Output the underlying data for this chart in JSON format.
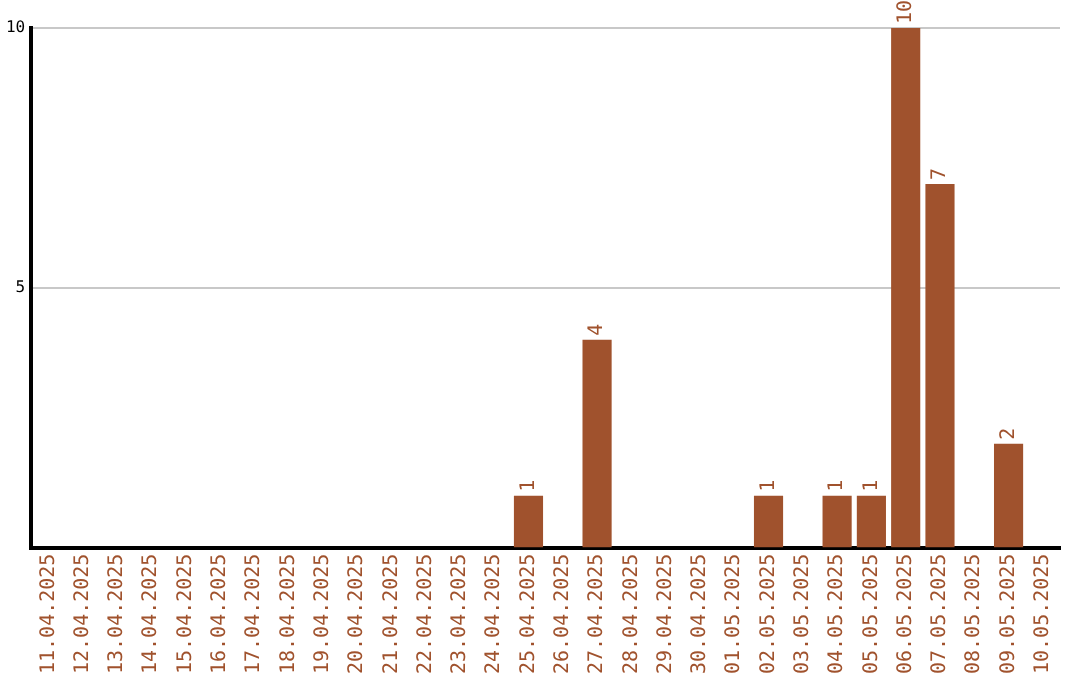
{
  "chart_data": {
    "type": "bar",
    "categories": [
      "11.04.2025",
      "12.04.2025",
      "13.04.2025",
      "14.04.2025",
      "15.04.2025",
      "16.04.2025",
      "17.04.2025",
      "18.04.2025",
      "19.04.2025",
      "20.04.2025",
      "21.04.2025",
      "22.04.2025",
      "23.04.2025",
      "24.04.2025",
      "25.04.2025",
      "26.04.2025",
      "27.04.2025",
      "28.04.2025",
      "29.04.2025",
      "30.04.2025",
      "01.05.2025",
      "02.05.2025",
      "03.05.2025",
      "04.05.2025",
      "05.05.2025",
      "06.05.2025",
      "07.05.2025",
      "08.05.2025",
      "09.05.2025",
      "10.05.2025"
    ],
    "values": [
      0,
      0,
      0,
      0,
      0,
      0,
      0,
      0,
      0,
      0,
      0,
      0,
      0,
      0,
      1,
      0,
      4,
      0,
      0,
      0,
      0,
      1,
      0,
      1,
      1,
      10,
      7,
      0,
      2,
      0
    ],
    "value_labels": [
      null,
      null,
      null,
      null,
      null,
      null,
      null,
      null,
      null,
      null,
      null,
      null,
      null,
      null,
      "1",
      null,
      "4",
      null,
      null,
      null,
      null,
      "1",
      null,
      "1",
      "1",
      "10",
      "7",
      null,
      "2",
      null
    ],
    "color": "#a0522d",
    "ylim": [
      0,
      10
    ],
    "yticks": [
      5,
      10
    ],
    "grid": "y",
    "legend": false
  }
}
